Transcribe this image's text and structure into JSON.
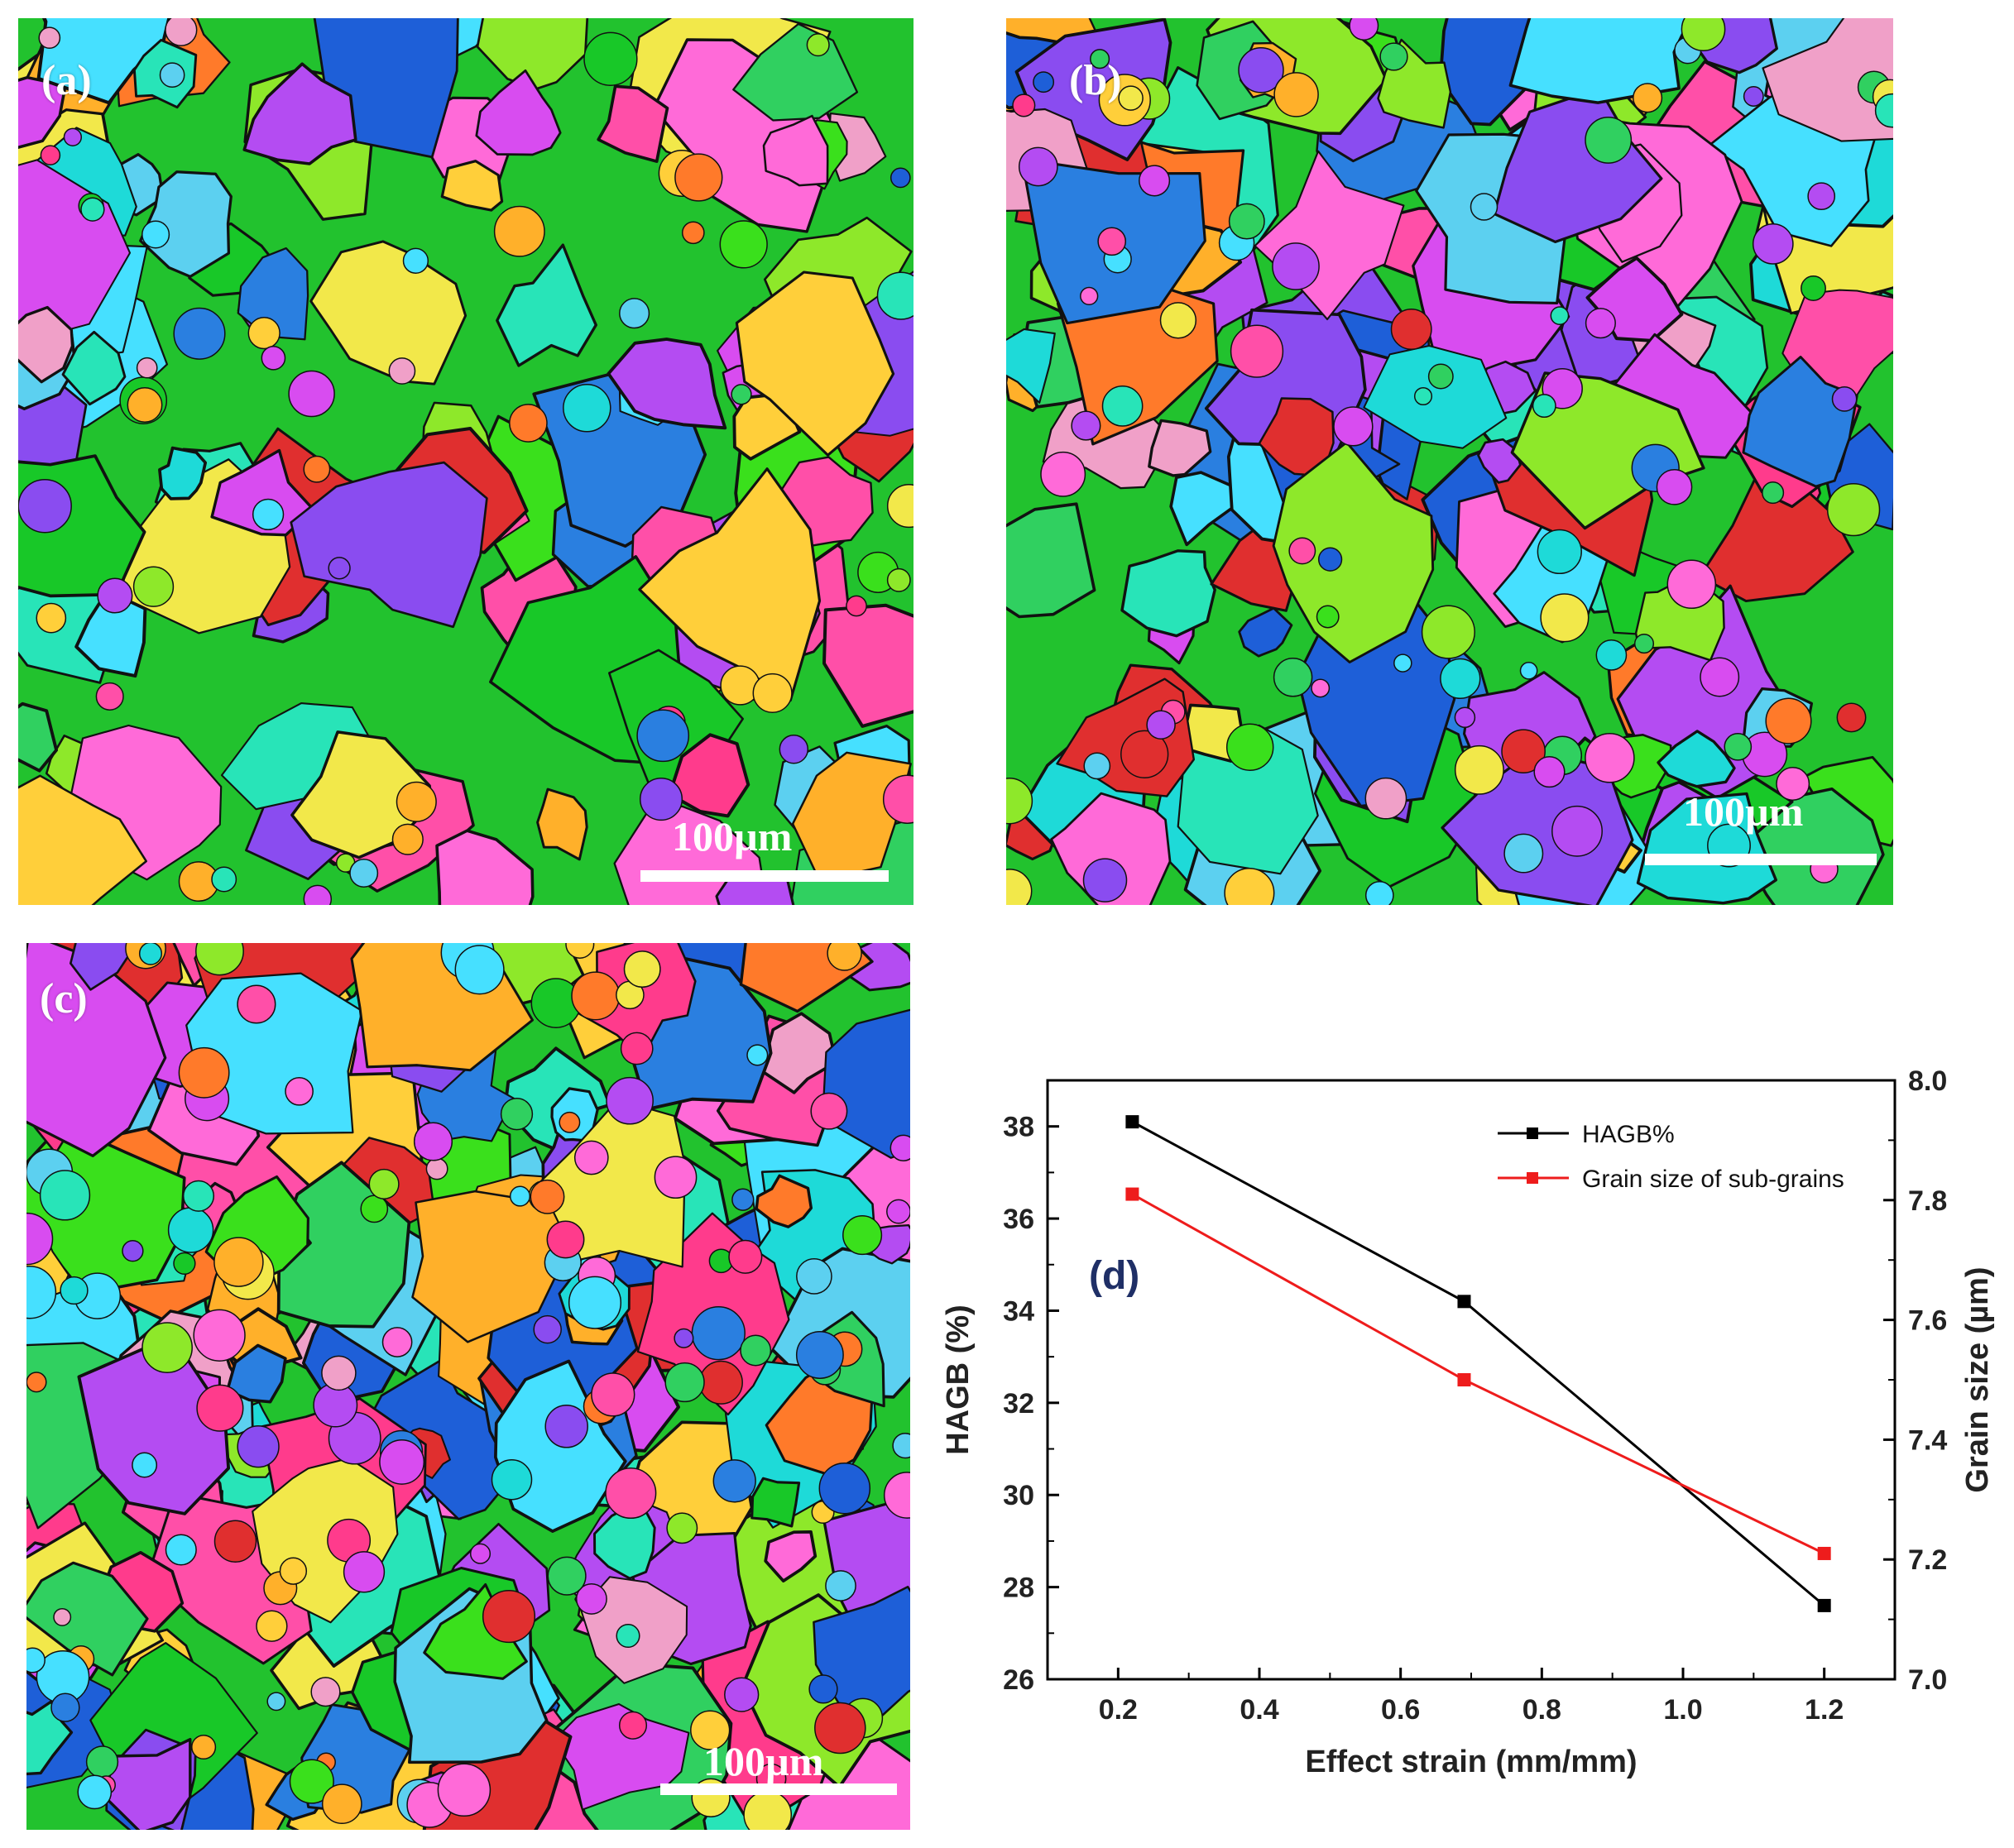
{
  "panels": {
    "a": {
      "label": "(a)",
      "scale": "100µm"
    },
    "b": {
      "label": "(b)",
      "scale": "100µm"
    },
    "c": {
      "label": "(c)",
      "scale": "100µm"
    }
  },
  "chart_data": {
    "type": "line",
    "panel_label": "(d)",
    "xlabel": "Effect strain (mm/mm)",
    "ylabel_left": "HAGB (%)",
    "ylabel_right": "Grain size (µm)",
    "x": [
      0.22,
      0.69,
      1.2
    ],
    "xlim": [
      0.1,
      1.3
    ],
    "ylim_left": [
      26,
      39
    ],
    "ylim_right": [
      7.0,
      8.0
    ],
    "x_ticks": [
      "0.2",
      "0.4",
      "0.6",
      "0.8",
      "1.0",
      "1.2"
    ],
    "y_left_ticks": [
      "26",
      "28",
      "30",
      "32",
      "34",
      "36",
      "38"
    ],
    "y_right_ticks": [
      "7.0",
      "7.2",
      "7.4",
      "7.6",
      "7.8",
      "8.0"
    ],
    "series": [
      {
        "name": "HAGB%",
        "axis": "left",
        "color": "#000000",
        "values": [
          38.1,
          34.2,
          27.6
        ]
      },
      {
        "name": "Grain size of sub-grains",
        "axis": "right",
        "color": "#ee1c1c",
        "values": [
          7.81,
          7.5,
          7.21
        ]
      }
    ]
  }
}
